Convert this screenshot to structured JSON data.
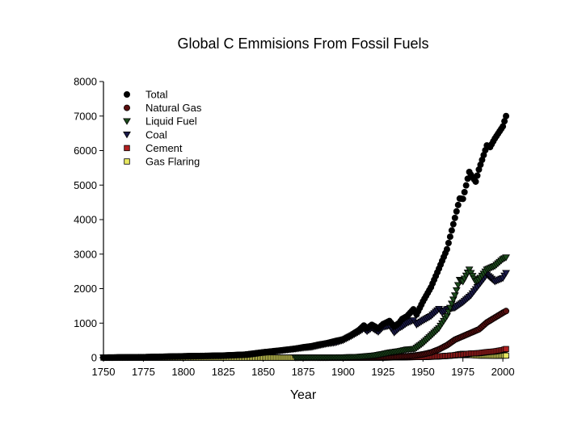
{
  "chart_data": {
    "type": "scatter",
    "title": "Global C Emmisions From Fossil Fuels",
    "xlabel": "Year",
    "ylabel": "",
    "xlim": [
      1750,
      2004
    ],
    "ylim": [
      0,
      8000
    ],
    "x_ticks": [
      1750,
      1775,
      1800,
      1825,
      1850,
      1875,
      1900,
      1925,
      1950,
      1975,
      2000
    ],
    "y_ticks": [
      0,
      1000,
      2000,
      3000,
      4000,
      5000,
      6000,
      7000,
      8000
    ],
    "grid": false,
    "legend_position": "top-left",
    "series": [
      {
        "name": "Total",
        "marker": "circle",
        "color": "#000000",
        "stroke": "#000000",
        "x": [
          1750,
          1775,
          1800,
          1825,
          1840,
          1850,
          1860,
          1870,
          1875,
          1880,
          1885,
          1890,
          1895,
          1900,
          1905,
          1910,
          1913,
          1915,
          1918,
          1920,
          1922,
          1925,
          1929,
          1932,
          1935,
          1937,
          1940,
          1944,
          1946,
          1950,
          1955,
          1960,
          1965,
          1970,
          1973,
          1975,
          1979,
          1980,
          1983,
          1985,
          1990,
          1992,
          1995,
          2000,
          2002
        ],
        "y": [
          3,
          15,
          40,
          60,
          90,
          150,
          200,
          260,
          300,
          330,
          380,
          420,
          480,
          530,
          650,
          800,
          930,
          850,
          950,
          900,
          840,
          970,
          1060,
          900,
          1000,
          1120,
          1200,
          1400,
          1250,
          1630,
          2040,
          2580,
          3140,
          4050,
          4610,
          4600,
          5380,
          5300,
          5100,
          5450,
          6150,
          6100,
          6350,
          6700,
          7000
        ]
      },
      {
        "name": "Natural Gas",
        "marker": "circle",
        "color": "#5a0f0f",
        "stroke": "#000000",
        "x": [
          1885,
          1900,
          1910,
          1920,
          1930,
          1940,
          1945,
          1950,
          1955,
          1960,
          1965,
          1970,
          1975,
          1980,
          1985,
          1990,
          1995,
          2000,
          2002
        ],
        "y": [
          0,
          2,
          5,
          10,
          20,
          40,
          60,
          97,
          150,
          240,
          360,
          520,
          620,
          720,
          820,
          1020,
          1160,
          1300,
          1350
        ]
      },
      {
        "name": "Liquid Fuel",
        "marker": "triangle-down",
        "color": "#1c4a1c",
        "stroke": "#000000",
        "x": [
          1870,
          1890,
          1900,
          1910,
          1920,
          1925,
          1930,
          1935,
          1940,
          1945,
          1950,
          1955,
          1960,
          1965,
          1970,
          1973,
          1975,
          1979,
          1980,
          1983,
          1985,
          1990,
          1995,
          2000,
          2002
        ],
        "y": [
          0,
          3,
          5,
          20,
          60,
          100,
          150,
          180,
          230,
          250,
          420,
          630,
          850,
          1200,
          1800,
          2250,
          2200,
          2550,
          2450,
          2200,
          2250,
          2550,
          2650,
          2850,
          2900
        ]
      },
      {
        "name": "Coal",
        "marker": "triangle-down",
        "color": "#1a1a4a",
        "stroke": "#000000",
        "x": [
          1750,
          1775,
          1800,
          1825,
          1840,
          1850,
          1860,
          1870,
          1875,
          1880,
          1885,
          1890,
          1895,
          1900,
          1905,
          1910,
          1913,
          1915,
          1918,
          1920,
          1922,
          1925,
          1929,
          1932,
          1935,
          1937,
          1940,
          1944,
          1946,
          1950,
          1955,
          1960,
          1962,
          1965,
          1970,
          1975,
          1980,
          1985,
          1990,
          1995,
          2000,
          2002
        ],
        "y": [
          3,
          15,
          40,
          60,
          90,
          150,
          200,
          250,
          280,
          300,
          350,
          400,
          430,
          500,
          620,
          750,
          840,
          760,
          860,
          800,
          740,
          880,
          920,
          720,
          850,
          900,
          1000,
          1080,
          950,
          1070,
          1200,
          1410,
          1300,
          1400,
          1440,
          1600,
          1800,
          2100,
          2400,
          2200,
          2300,
          2450
        ]
      },
      {
        "name": "Cement",
        "marker": "square",
        "color": "#b22020",
        "stroke": "#000000",
        "x": [
          1930,
          1940,
          1950,
          1955,
          1960,
          1965,
          1970,
          1975,
          1980,
          1985,
          1990,
          1995,
          2000,
          2002
        ],
        "y": [
          10,
          15,
          20,
          30,
          40,
          50,
          70,
          90,
          120,
          130,
          160,
          180,
          220,
          250
        ]
      },
      {
        "name": "Gas Flaring",
        "marker": "square",
        "color": "#e8e860",
        "stroke": "#000000",
        "x": [
          1750,
          1775,
          1800,
          1825,
          1850,
          1875,
          1900,
          1925,
          1950,
          1955,
          1960,
          1965,
          1970,
          1973,
          1975,
          1978,
          1980,
          1985,
          1990,
          1995,
          2000,
          2002
        ],
        "y": [
          0,
          0,
          0,
          0,
          0,
          0,
          0,
          0,
          20,
          25,
          35,
          50,
          70,
          100,
          110,
          100,
          80,
          60,
          60,
          55,
          60,
          60
        ]
      }
    ]
  }
}
